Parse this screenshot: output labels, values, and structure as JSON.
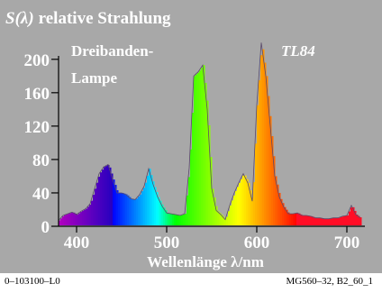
{
  "chart_data": {
    "type": "area",
    "title_symbol": "S(λ)",
    "title_rest": "relative Strahlung",
    "legend_line1": "Dreibanden-",
    "legend_line2": "Lampe",
    "lamp": "TL84",
    "xlabel": "Wellenlänge λ/nm",
    "xlim": [
      380,
      720
    ],
    "ylim": [
      0,
      230
    ],
    "xticks": [
      400,
      500,
      600,
      700
    ],
    "yticks": [
      0,
      40,
      80,
      120,
      160,
      200
    ],
    "grid": false,
    "background_color": "#a8a8a8",
    "x": [
      380,
      385,
      390,
      395,
      400,
      405,
      410,
      415,
      420,
      425,
      430,
      435,
      440,
      445,
      450,
      455,
      460,
      465,
      470,
      475,
      480,
      485,
      490,
      495,
      500,
      505,
      510,
      515,
      520,
      525,
      530,
      535,
      540,
      545,
      550,
      555,
      560,
      565,
      570,
      575,
      580,
      585,
      590,
      595,
      600,
      605,
      610,
      615,
      620,
      625,
      630,
      635,
      640,
      645,
      650,
      655,
      660,
      665,
      670,
      675,
      680,
      685,
      690,
      695,
      700,
      705,
      710,
      715
    ],
    "values": [
      7,
      13,
      15,
      17,
      14,
      18,
      21,
      27,
      45,
      63,
      71,
      74,
      56,
      40,
      40,
      38,
      33,
      32,
      38,
      48,
      69,
      50,
      35,
      24,
      16,
      15,
      14,
      13,
      15,
      70,
      180,
      185,
      193,
      140,
      45,
      19,
      14,
      8,
      25,
      40,
      52,
      63,
      52,
      30,
      145,
      220,
      180,
      120,
      60,
      35,
      23,
      15,
      15,
      16,
      13,
      13,
      12,
      10,
      10,
      9,
      9,
      10,
      10,
      12,
      13,
      25,
      14,
      10
    ]
  },
  "footer": {
    "left": "0–103100–L0",
    "right": "MG560–32, B2_60_1"
  }
}
